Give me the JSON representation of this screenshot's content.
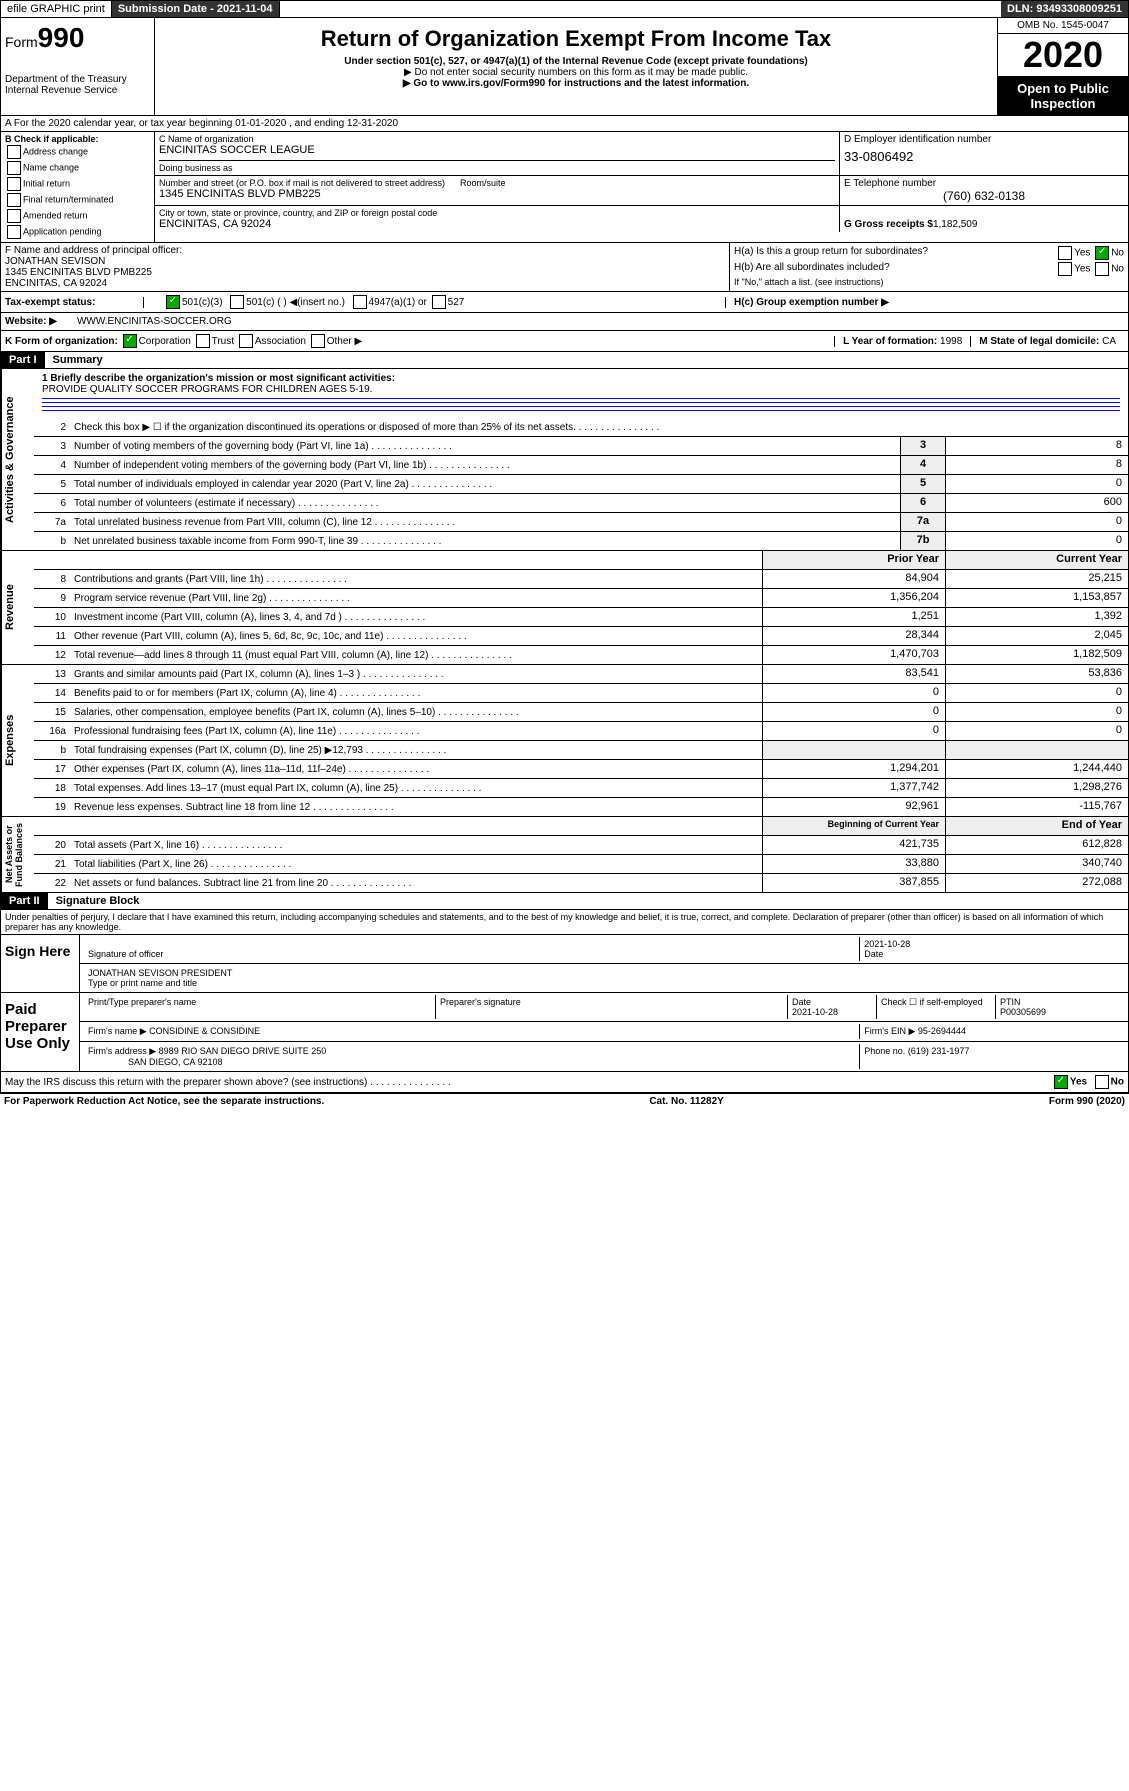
{
  "topbar": {
    "efile": "efile GRAPHIC print",
    "subdate_lbl": "Submission Date - ",
    "subdate": "2021-11-04",
    "dln_lbl": "DLN: ",
    "dln": "93493308009251"
  },
  "header": {
    "form": "Form",
    "num": "990",
    "title": "Return of Organization Exempt From Income Tax",
    "sub1": "Under section 501(c), 527, or 4947(a)(1) of the Internal Revenue Code (except private foundations)",
    "sub2": "▶ Do not enter social security numbers on this form as it may be made public.",
    "sub3": "▶ Go to www.irs.gov/Form990 for instructions and the latest information.",
    "dept": "Department of the Treasury\nInternal Revenue Service",
    "omb": "OMB No. 1545-0047",
    "year": "2020",
    "otp": "Open to Public Inspection"
  },
  "row_a": "A For the 2020 calendar year, or tax year beginning 01-01-2020    , and ending 12-31-2020",
  "checkB": {
    "hdr": "B Check if applicable:",
    "opts": [
      "Address change",
      "Name change",
      "Initial return",
      "Final return/terminated",
      "Amended return",
      "Application pending"
    ]
  },
  "org": {
    "c_lbl": "C Name of organization",
    "name": "ENCINITAS SOCCER LEAGUE",
    "dba_lbl": "Doing business as",
    "addr_lbl": "Number and street (or P.O. box if mail is not delivered to street address)",
    "room_lbl": "Room/suite",
    "addr": "1345 ENCINITAS BLVD PMB225",
    "city_lbl": "City or town, state or province, country, and ZIP or foreign postal code",
    "city": "ENCINITAS, CA  92024"
  },
  "right": {
    "d_lbl": "D Employer identification number",
    "ein": "33-0806492",
    "e_lbl": "E Telephone number",
    "phone": "(760) 632-0138",
    "g_lbl": "G Gross receipts $ ",
    "gross": "1,182,509"
  },
  "fh": {
    "f_lbl": "F  Name and address of principal officer:",
    "f_name": "JONATHAN SEVISON",
    "f_addr": "1345 ENCINITAS BLVD PMB225",
    "f_city": "ENCINITAS, CA  92024",
    "ha": "H(a)  Is this a group return for subordinates?",
    "ha_yes": "Yes",
    "ha_no": "No",
    "hb": "H(b)  Are all subordinates included?",
    "hb_note": "If \"No,\" attach a list. (see instructions)",
    "hc": "H(c)  Group exemption number ▶"
  },
  "tax": {
    "lbl": "Tax-exempt status:",
    "t1": "501(c)(3)",
    "t2": "501(c) (  ) ◀(insert no.)",
    "t3": "4947(a)(1) or",
    "t4": "527"
  },
  "web": {
    "lbl": "Website: ▶",
    "url": "WWW.ENCINITAS-SOCCER.ORG"
  },
  "kl": {
    "k": "K Form of organization:",
    "corp": "Corporation",
    "trust": "Trust",
    "assoc": "Association",
    "other": "Other ▶",
    "l_lbl": "L Year of formation:",
    "l_val": "1998",
    "m_lbl": "M State of legal domicile:",
    "m_val": "CA"
  },
  "part1": {
    "hdr": "Part I",
    "title": "Summary"
  },
  "mission": {
    "lbl": "1  Briefly describe the organization's mission or most significant activities:",
    "txt": "PROVIDE QUALITY SOCCER PROGRAMS FOR CHILDREN AGES 5-19."
  },
  "gov_lines": [
    {
      "n": "2",
      "t": "Check this box ▶ ☐  if the organization discontinued its operations or disposed of more than 25% of its net assets.",
      "b": "",
      "v": ""
    },
    {
      "n": "3",
      "t": "Number of voting members of the governing body (Part VI, line 1a)",
      "b": "3",
      "v": "8"
    },
    {
      "n": "4",
      "t": "Number of independent voting members of the governing body (Part VI, line 1b)",
      "b": "4",
      "v": "8"
    },
    {
      "n": "5",
      "t": "Total number of individuals employed in calendar year 2020 (Part V, line 2a)",
      "b": "5",
      "v": "0"
    },
    {
      "n": "6",
      "t": "Total number of volunteers (estimate if necessary)",
      "b": "6",
      "v": "600"
    },
    {
      "n": "7a",
      "t": "Total unrelated business revenue from Part VIII, column (C), line 12",
      "b": "7a",
      "v": "0"
    },
    {
      "n": "b",
      "t": "Net unrelated business taxable income from Form 990-T, line 39",
      "b": "7b",
      "v": "0"
    }
  ],
  "rev_hdr": {
    "py": "Prior Year",
    "cy": "Current Year"
  },
  "rev_lines": [
    {
      "n": "8",
      "t": "Contributions and grants (Part VIII, line 1h)",
      "py": "84,904",
      "cy": "25,215"
    },
    {
      "n": "9",
      "t": "Program service revenue (Part VIII, line 2g)",
      "py": "1,356,204",
      "cy": "1,153,857"
    },
    {
      "n": "10",
      "t": "Investment income (Part VIII, column (A), lines 3, 4, and 7d )",
      "py": "1,251",
      "cy": "1,392"
    },
    {
      "n": "11",
      "t": "Other revenue (Part VIII, column (A), lines 5, 6d, 8c, 9c, 10c, and 11e)",
      "py": "28,344",
      "cy": "2,045"
    },
    {
      "n": "12",
      "t": "Total revenue—add lines 8 through 11 (must equal Part VIII, column (A), line 12)",
      "py": "1,470,703",
      "cy": "1,182,509"
    }
  ],
  "exp_lines": [
    {
      "n": "13",
      "t": "Grants and similar amounts paid (Part IX, column (A), lines 1–3 )",
      "py": "83,541",
      "cy": "53,836"
    },
    {
      "n": "14",
      "t": "Benefits paid to or for members (Part IX, column (A), line 4)",
      "py": "0",
      "cy": "0"
    },
    {
      "n": "15",
      "t": "Salaries, other compensation, employee benefits (Part IX, column (A), lines 5–10)",
      "py": "0",
      "cy": "0"
    },
    {
      "n": "16a",
      "t": "Professional fundraising fees (Part IX, column (A), line 11e)",
      "py": "0",
      "cy": "0"
    },
    {
      "n": "b",
      "t": "Total fundraising expenses (Part IX, column (D), line 25) ▶12,793",
      "py": "",
      "cy": ""
    },
    {
      "n": "17",
      "t": "Other expenses (Part IX, column (A), lines 11a–11d, 11f–24e)",
      "py": "1,294,201",
      "cy": "1,244,440"
    },
    {
      "n": "18",
      "t": "Total expenses. Add lines 13–17 (must equal Part IX, column (A), line 25)",
      "py": "1,377,742",
      "cy": "1,298,276"
    },
    {
      "n": "19",
      "t": "Revenue less expenses. Subtract line 18 from line 12",
      "py": "92,961",
      "cy": "-115,767"
    }
  ],
  "na_hdr": {
    "py": "Beginning of Current Year",
    "cy": "End of Year"
  },
  "na_lines": [
    {
      "n": "20",
      "t": "Total assets (Part X, line 16)",
      "py": "421,735",
      "cy": "612,828"
    },
    {
      "n": "21",
      "t": "Total liabilities (Part X, line 26)",
      "py": "33,880",
      "cy": "340,740"
    },
    {
      "n": "22",
      "t": "Net assets or fund balances. Subtract line 21 from line 20",
      "py": "387,855",
      "cy": "272,088"
    }
  ],
  "vtabs": {
    "gov": "Activities & Governance",
    "rev": "Revenue",
    "exp": "Expenses",
    "na": "Net Assets or\nFund Balances"
  },
  "part2": {
    "hdr": "Part II",
    "title": "Signature Block"
  },
  "perjury": "Under penalties of perjury, I declare that I have examined this return, including accompanying schedules and statements, and to the best of my knowledge and belief, it is true, correct, and complete. Declaration of preparer (other than officer) is based on all information of which preparer has any knowledge.",
  "sign": {
    "here": "Sign Here",
    "date": "2021-10-28",
    "date_lbl": "Date",
    "sig_lbl": "Signature of officer",
    "name": "JONATHAN SEVISON  PRESIDENT",
    "name_lbl": "Type or print name and title"
  },
  "paid": {
    "hdr": "Paid Preparer Use Only",
    "c1": "Print/Type preparer's name",
    "c2": "Preparer's signature",
    "c3": "Date",
    "c3v": "2021-10-28",
    "c4": "Check ☐ if self-employed",
    "c5": "PTIN",
    "c5v": "P00305699",
    "firm_lbl": "Firm's name    ▶",
    "firm": "CONSIDINE & CONSIDINE",
    "ein_lbl": "Firm's EIN ▶",
    "ein": "95-2694444",
    "addr_lbl": "Firm's address ▶",
    "addr": "8989 RIO SAN DIEGO DRIVE SUITE 250",
    "addr2": "SAN DIEGO, CA  92108",
    "phone_lbl": "Phone no.",
    "phone": "(619) 231-1977"
  },
  "discuss": "May the IRS discuss this return with the preparer shown above? (see instructions)",
  "yes": "Yes",
  "no": "No",
  "footer": {
    "l": "For Paperwork Reduction Act Notice, see the separate instructions.",
    "m": "Cat. No. 11282Y",
    "r": "Form 990 (2020)"
  }
}
